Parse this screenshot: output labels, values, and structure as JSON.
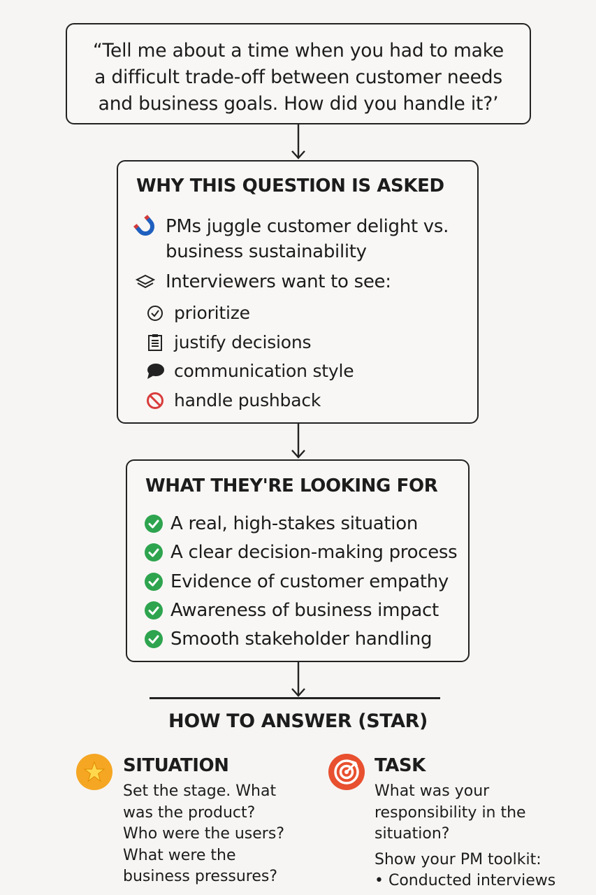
{
  "question": {
    "lines": [
      "“Tell me about a time when you had to make",
      "a difficult trade-off between customer needs",
      "and business goals. How did you handle it?’"
    ]
  },
  "why_section": {
    "heading": "WHY THIS QUESTION IS ASKED",
    "point1": {
      "icon": "magnet-icon",
      "lines": [
        "PMs juggle customer delight vs.",
        "business sustainability"
      ]
    },
    "point2": {
      "icon": "layers-icon",
      "text": "Interviewers want to see:"
    },
    "subitems": [
      {
        "icon": "check-circle-icon",
        "label": "prioritize"
      },
      {
        "icon": "clipboard-icon",
        "label": "justify decisions"
      },
      {
        "icon": "speech-bubble-icon",
        "label": "communication style"
      },
      {
        "icon": "no-entry-icon",
        "label": "handle pushback"
      }
    ]
  },
  "look_section": {
    "heading": "WHAT THEY'RE LOOKING FOR",
    "items": [
      "A real, high-stakes situation",
      "A clear decision-making process",
      "Evidence of customer empathy",
      "Awareness of business impact",
      "Smooth stakeholder handling"
    ]
  },
  "star_section": {
    "heading": "HOW TO ANSWER (STAR)",
    "situation": {
      "icon": "star-icon",
      "title": "SITUATION",
      "lines": [
        "Set the stage. What",
        "was the product?",
        "Who were the users?",
        "What were the",
        "business pressures?"
      ]
    },
    "task": {
      "icon": "target-icon",
      "title": "TASK",
      "lines": [
        "What was your",
        "responsibility in the",
        "situation?"
      ],
      "toolkit_label": "Show your PM toolkit:",
      "toolkit_items": [
        "• Conducted interviews"
      ]
    }
  },
  "colors": {
    "outline": "#222222",
    "check_green": "#2ea44f",
    "no_entry_red": "#d93c3c",
    "star_orange": "#f5a623",
    "target_red": "#e8502f"
  }
}
